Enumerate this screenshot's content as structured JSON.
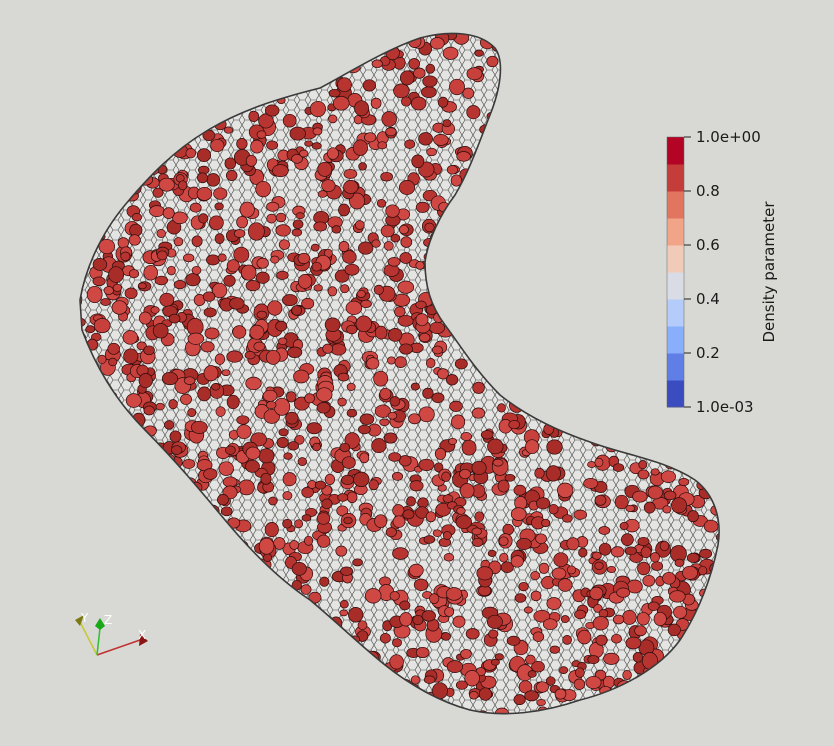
{
  "render": {
    "background": "#d8d8d4",
    "mesh_color": "#3a3a3a",
    "hull_fill": "#e4e4e2",
    "cell_fill": "#c8403c",
    "cell_edge": "#2a0c0c"
  },
  "colorbar": {
    "title": "Density parameter",
    "range": [
      0.001,
      1.0
    ],
    "tick_labels": [
      "1.0e+00",
      "0.8",
      "0.6",
      "0.4",
      "0.2",
      "1.0e-03"
    ],
    "colors": [
      "#3b4cc0",
      "#5f7fe6",
      "#89aefb",
      "#b4ccf9",
      "#d9dce4",
      "#f1cbb8",
      "#f2a489",
      "#e27560",
      "#c43d3a",
      "#b40426"
    ]
  },
  "axes": {
    "x_label": "X",
    "y_label": "Y",
    "z_label": "Z",
    "x_color": "#c03030",
    "y_color": "#c8c830",
    "z_color": "#30c030"
  }
}
